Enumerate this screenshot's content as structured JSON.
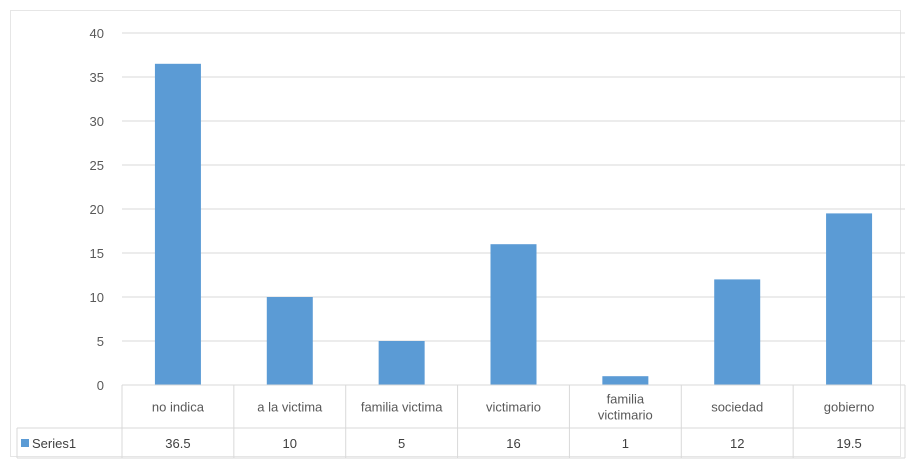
{
  "chart_data": {
    "type": "bar",
    "categories": [
      [
        "no indica"
      ],
      [
        "a la victima"
      ],
      [
        "familia victima"
      ],
      [
        "victimario"
      ],
      [
        "familia",
        "victimario"
      ],
      [
        "sociedad"
      ],
      [
        "gobierno"
      ]
    ],
    "series": [
      {
        "name": "Series1",
        "values": [
          36.5,
          10,
          5,
          16,
          1,
          12,
          19.5
        ],
        "value_labels": [
          "36.5",
          "10",
          "5",
          "16",
          "1",
          "12",
          "19.5"
        ],
        "color": "#5b9bd5"
      }
    ],
    "y_ticks": [
      "0",
      "5",
      "10",
      "15",
      "20",
      "25",
      "30",
      "35",
      "40"
    ],
    "ylim": [
      0,
      40
    ],
    "grid": true,
    "legend": "data-table-left",
    "data_table": true
  }
}
